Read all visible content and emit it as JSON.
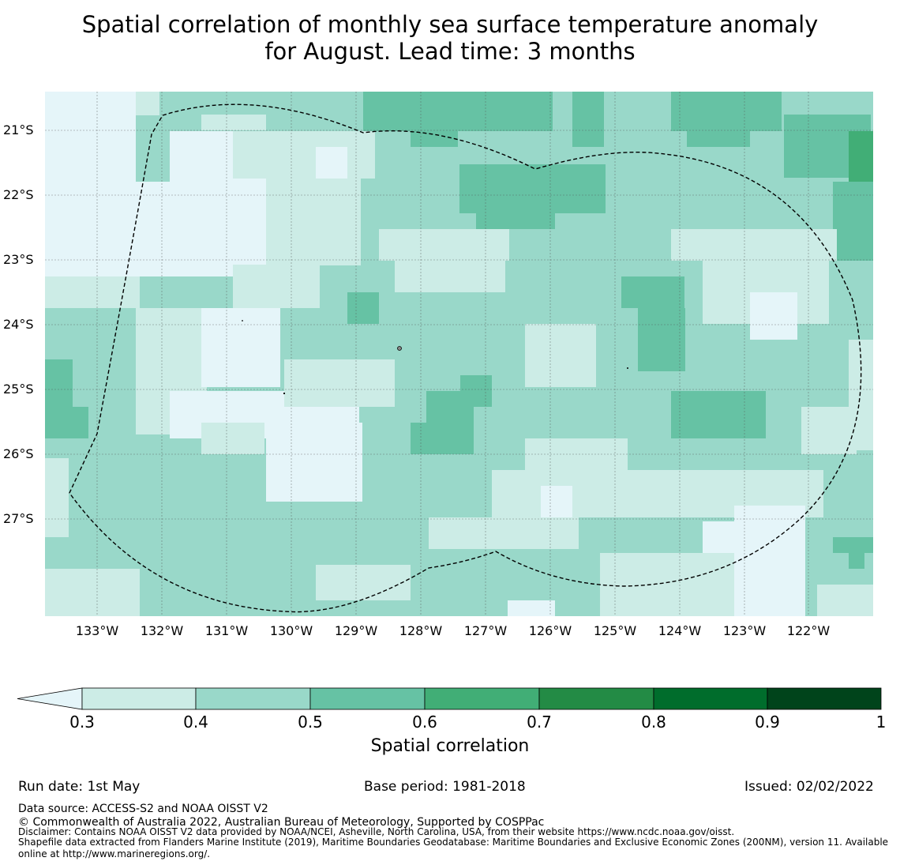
{
  "title": {
    "line1": "Spatial correlation of monthly sea surface temperature anomaly",
    "line2": "for August. Lead time: 3 months"
  },
  "map": {
    "lat_labels": [
      "21°S",
      "22°S",
      "23°S",
      "24°S",
      "25°S",
      "26°S",
      "27°S"
    ],
    "lon_labels": [
      "133°W",
      "132°W",
      "131°W",
      "130°W",
      "129°W",
      "128°W",
      "127°W",
      "126°W",
      "125°W",
      "124°W",
      "123°W",
      "122°W"
    ],
    "colors": {
      "lt_0_3": "#e5f5f9",
      "c_0_3_0_4": "#ccece6",
      "c_0_4_0_5": "#99d8c9",
      "c_0_5_0_6": "#66c2a4",
      "c_0_6_0_7": "#41ae76",
      "c_0_7_0_8": "#238b45",
      "c_0_8_0_9": "#006d2c",
      "c_0_9_1": "#00441b",
      "boundary": "#000000",
      "grid": "#555555"
    },
    "boundary_style": "dashed",
    "grid": true
  },
  "colorbar": {
    "ticks": [
      "0.3",
      "0.4",
      "0.5",
      "0.6",
      "0.7",
      "0.8",
      "0.9",
      "1"
    ],
    "label": "Spatial correlation",
    "extend": "min"
  },
  "footer": {
    "run_date": "Run date: 1st May",
    "base_period": "Base period: 1981-2018",
    "issued": "Issued: 02/02/2022",
    "data_source": "Data source: ACCESS-S2 and NOAA OISST V2",
    "copyright": "© Commonwealth of Australia 2022, Australian Bureau of Meteorology, Supported by COSPPac",
    "disclaimer": "Disclaimer: Contains NOAA OISST V2 data provided by NOAA/NCEI, Asheville, North Carolina, USA, from their website https://www.ncdc.noaa.gov/oisst.",
    "shapefile_line1": "Shapefile data extracted from Flanders Marine Institute (2019), Maritime Boundaries Geodatabase: Maritime Boundaries and Exclusive Economic Zones (200NM), version 11. Available",
    "shapefile_line2": "online at http://www.marineregions.org/."
  }
}
